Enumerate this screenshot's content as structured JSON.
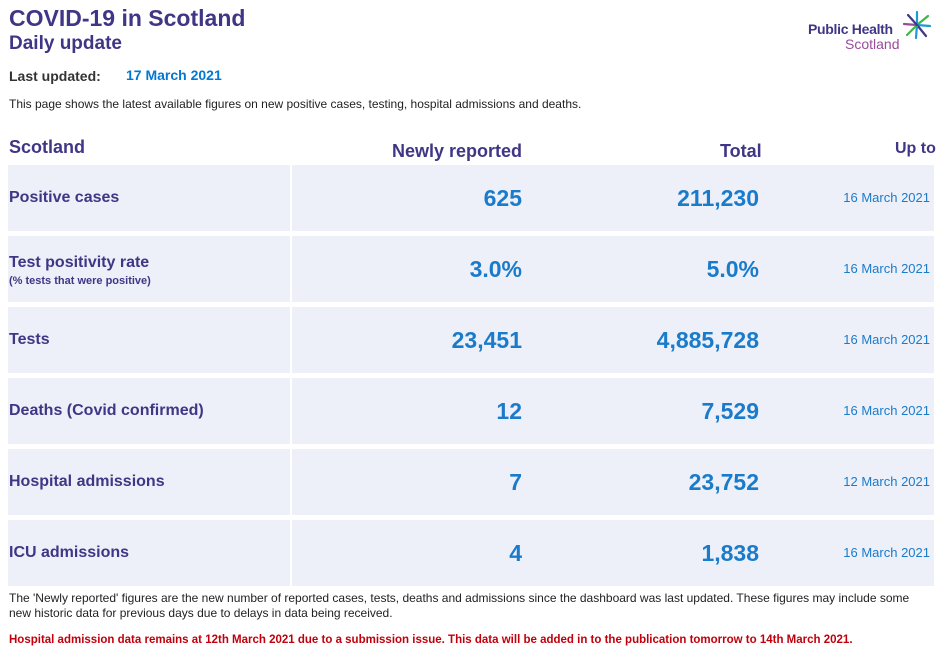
{
  "header": {
    "title": "COVID-19 in Scotland",
    "subtitle": "Daily update",
    "last_updated_label": "Last updated:",
    "last_updated_value": "17 March 2021",
    "intro": "This page shows the latest available figures on new positive cases, testing, hospital admissions and deaths."
  },
  "logo": {
    "line1": "Public Health",
    "line2": "Scotland"
  },
  "table": {
    "col_region": "Scotland",
    "col_new": "Newly reported",
    "col_total": "Total",
    "col_upto": "Up to",
    "rows": [
      {
        "label": "Positive cases",
        "sublabel": "",
        "new": "625",
        "total": "211,230",
        "upto": "16 March 2021"
      },
      {
        "label": "Test positivity rate",
        "sublabel": "(% tests that were positive)",
        "new": "3.0%",
        "total": "5.0%",
        "upto": "16 March 2021"
      },
      {
        "label": "Tests",
        "sublabel": "",
        "new": "23,451",
        "total": "4,885,728",
        "upto": "16 March 2021"
      },
      {
        "label": "Deaths (Covid confirmed)",
        "sublabel": "",
        "new": "12",
        "total": "7,529",
        "upto": "16 March 2021"
      },
      {
        "label": "Hospital admissions",
        "sublabel": "",
        "new": "7",
        "total": "23,752",
        "upto": "12 March 2021"
      },
      {
        "label": "ICU admissions",
        "sublabel": "",
        "new": "4",
        "total": "1,838",
        "upto": "16 March 2021"
      }
    ]
  },
  "footnote": "The 'Newly reported' figures are the new number of reported cases, tests, deaths and admissions since the dashboard was last updated. These figures may include some new historic data for previous days due to delays in data being received.",
  "warning": "Hospital admission data remains at 12th March 2021 due to a submission issue. This data will be added in to the publication tomorrow to 14th March 2021.",
  "colors": {
    "brand_purple": "#3f3685",
    "accent_blue": "#1a7bcb",
    "row_bg": "#edf0f9",
    "warning_red": "#c0000c",
    "logo_magenta": "#9b4a9c"
  }
}
